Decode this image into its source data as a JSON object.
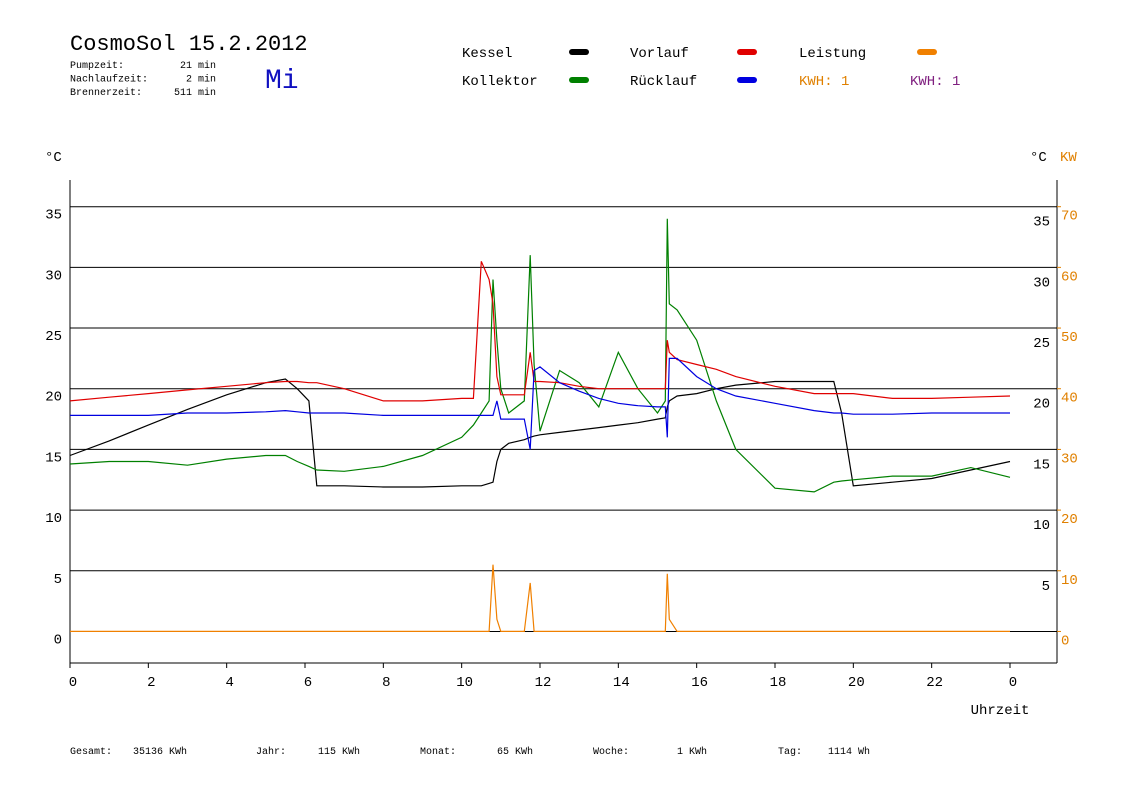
{
  "chart_data": {
    "type": "line",
    "title": "CosmoSol 15.2.2012",
    "day": "Mi",
    "stats": [
      [
        "Pumpzeit:",
        "21 min"
      ],
      [
        "Nachlaufzeit:",
        "2 min"
      ],
      [
        "Brennerzeit:",
        "511 min"
      ]
    ],
    "kwh_labels": [
      {
        "text": "KWH: 1",
        "color": "#e08000"
      },
      {
        "text": "KWH: 1",
        "color": "#802080"
      }
    ],
    "totals": [
      [
        "Gesamt:",
        "35136 KWh"
      ],
      [
        "Jahr:",
        "115 KWh"
      ],
      [
        "Monat:",
        "65 KWh"
      ],
      [
        "Woche:",
        "1 KWh"
      ],
      [
        "Tag:",
        "1114 Wh"
      ]
    ],
    "y_label": "°C",
    "y2_label": "KW",
    "x_label": "Uhrzeit",
    "xlim": [
      0,
      25.2
    ],
    "xticks": [
      0,
      2,
      4,
      6,
      8,
      10,
      12,
      14,
      16,
      18,
      20,
      22,
      {
        "value": 24,
        "label": "0"
      }
    ],
    "ylim": [
      -2.6,
      37.2
    ],
    "yticks": [
      0,
      5,
      10,
      15,
      20,
      25,
      30,
      35
    ],
    "y2lim": [
      -5.2,
      74.4
    ],
    "y2ticks": [
      0,
      10,
      20,
      30,
      40,
      50,
      60,
      70
    ],
    "grid": true,
    "x": [
      0,
      1,
      2,
      3,
      4,
      5,
      5.5,
      5.8,
      6.1,
      6.3,
      7,
      8,
      9,
      10,
      10.3,
      10.5,
      10.7,
      10.8,
      10.9,
      11,
      11.2,
      11.6,
      11.75,
      11.85,
      12,
      12.5,
      13,
      13.5,
      14,
      14.5,
      15,
      15.2,
      15.25,
      15.3,
      15.5,
      16,
      16.5,
      17,
      18,
      19,
      19.5,
      19.7,
      20,
      21,
      22,
      23,
      24
    ],
    "series": [
      {
        "name": "Kessel",
        "color": "#000000",
        "values": [
          14.5,
          15.7,
          17,
          18.3,
          19.5,
          20.5,
          20.8,
          20,
          19,
          12,
          12,
          11.9,
          11.9,
          12,
          12,
          12,
          12.2,
          12.3,
          14,
          15,
          15.5,
          15.8,
          16,
          16.1,
          16.2,
          16.4,
          16.6,
          16.8,
          17,
          17.2,
          17.5,
          17.6,
          18.5,
          19,
          19.4,
          19.6,
          20,
          20.3,
          20.6,
          20.6,
          20.6,
          18,
          12,
          12.3,
          12.6,
          13.3,
          14
        ]
      },
      {
        "name": "Kollektor",
        "color": "#008000",
        "values": [
          13.8,
          14,
          14,
          13.7,
          14.2,
          14.5,
          14.5,
          14,
          13.6,
          13.3,
          13.2,
          13.6,
          14.5,
          16,
          17,
          18,
          19,
          29,
          24,
          20,
          18,
          19,
          31,
          22,
          16.5,
          21.5,
          20.5,
          18.5,
          23,
          20,
          18,
          19,
          34,
          27,
          26.5,
          24,
          19,
          15,
          11.8,
          11.5,
          12.3,
          12.4,
          12.5,
          12.8,
          12.8,
          13.5,
          12.7
        ]
      },
      {
        "name": "Vorlauf",
        "color": "#e00000",
        "values": [
          19,
          19.3,
          19.6,
          19.9,
          20.2,
          20.5,
          20.6,
          20.6,
          20.5,
          20.5,
          20,
          19,
          19,
          19.2,
          19.2,
          30.5,
          29,
          27,
          21,
          19.5,
          19.5,
          19.5,
          23,
          20.6,
          20.6,
          20.5,
          20.2,
          20,
          20,
          20,
          20,
          20,
          24,
          23,
          22.4,
          22,
          21.6,
          21,
          20.2,
          19.6,
          19.6,
          19.6,
          19.6,
          19.2,
          19.2,
          19.3,
          19.4
        ]
      },
      {
        "name": "Rücklauf",
        "color": "#0000e0",
        "values": [
          17.8,
          17.8,
          17.8,
          18,
          18,
          18.1,
          18.2,
          18.1,
          18,
          18,
          18,
          17.8,
          17.8,
          17.8,
          17.8,
          17.8,
          17.8,
          17.8,
          19,
          17.5,
          17.5,
          17.5,
          15,
          21.5,
          21.8,
          20.5,
          19.8,
          19.2,
          18.8,
          18.6,
          18.5,
          18.5,
          16,
          22.5,
          22.5,
          21,
          20,
          19.4,
          18.8,
          18.2,
          18,
          18,
          17.9,
          17.9,
          18,
          18,
          18
        ]
      },
      {
        "name": "Leistung",
        "color": "#f08000",
        "axis": "y2",
        "values": [
          0,
          0,
          0,
          0,
          0,
          0,
          0,
          0,
          0,
          0,
          0,
          0,
          0,
          0,
          0,
          0,
          0,
          11,
          2,
          0,
          0,
          0,
          8,
          0,
          0,
          0,
          0,
          0,
          0,
          0,
          0,
          0,
          9.5,
          2,
          0,
          0,
          0,
          0,
          0,
          0,
          0,
          0,
          0,
          0,
          0,
          0,
          0
        ]
      }
    ]
  }
}
